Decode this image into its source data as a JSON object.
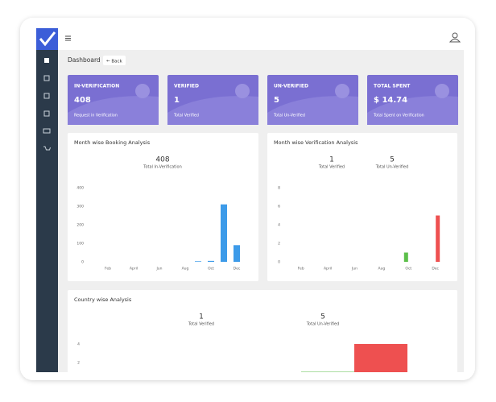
{
  "header": {
    "title": "Dashboard",
    "back": "Back"
  },
  "cards": [
    {
      "title": "IN-VERIFICATION",
      "value": "408",
      "label": "Request in Verification"
    },
    {
      "title": "VERIFIED",
      "value": "1",
      "label": "Total Verified"
    },
    {
      "title": "UN-VERIFIED",
      "value": "5",
      "label": "Total Un-Verified"
    },
    {
      "title": "TOTAL SPENT",
      "value": "$ 14.74",
      "label": "Total Spent on Verification"
    }
  ],
  "chart_data": [
    {
      "type": "bar",
      "title": "Month wise Booking Analysis",
      "summary": [
        {
          "value": 408,
          "label": "Total In-Verification"
        }
      ],
      "categories": [
        null,
        "Feb",
        null,
        "April",
        null,
        "Jun",
        null,
        "Aug",
        null,
        "Oct",
        null,
        "Dec"
      ],
      "series": [
        {
          "color": "#3d9be9",
          "values": [
            0,
            0,
            0,
            0,
            0,
            0,
            0,
            0,
            3,
            5,
            310,
            90
          ]
        }
      ],
      "ylim": [
        0,
        400
      ],
      "yticks": [
        0,
        100,
        200,
        300,
        400
      ]
    },
    {
      "type": "bar",
      "title": "Month wise Verification Analysis",
      "summary": [
        {
          "value": 1,
          "label": "Total Verified"
        },
        {
          "value": 5,
          "label": "Total Un-Verified"
        }
      ],
      "categories": [
        null,
        "Feb",
        null,
        "April",
        null,
        "Jun",
        null,
        "Aug",
        null,
        "Oct",
        null,
        "Dec"
      ],
      "series": [
        {
          "color": "#5cbf4a",
          "values": [
            0,
            0,
            0,
            0,
            0,
            0,
            0,
            0,
            0,
            1,
            0,
            0
          ]
        },
        {
          "color": "#ee5050",
          "values": [
            0,
            0,
            0,
            0,
            0,
            0,
            0,
            0,
            0,
            0,
            0,
            5
          ]
        }
      ],
      "ylim": [
        0,
        8
      ],
      "yticks": [
        0,
        2,
        4,
        6,
        8
      ]
    },
    {
      "type": "bar",
      "title": "Country wise Analysis",
      "summary": [
        {
          "value": 1,
          "label": "Total Verified"
        },
        {
          "value": 5,
          "label": "Total Un-Verified"
        }
      ],
      "categories": [
        null
      ],
      "series": [
        {
          "color": "#5cbf4a",
          "values": [
            1
          ]
        },
        {
          "color": "#ee5050",
          "values": [
            4
          ]
        }
      ],
      "ylim": [
        0,
        4.3
      ],
      "yticks": [
        2,
        4
      ]
    }
  ]
}
